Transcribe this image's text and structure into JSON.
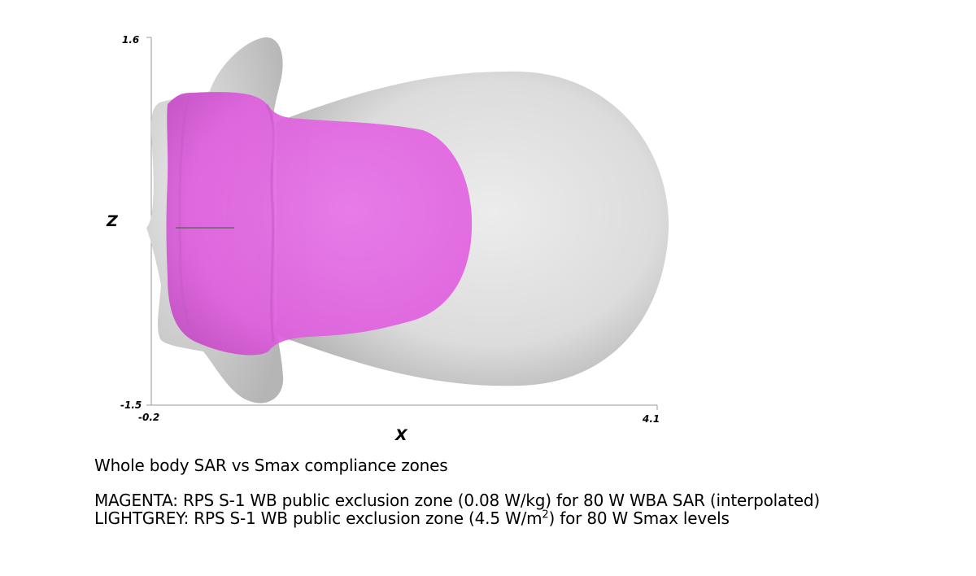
{
  "figure": {
    "axes": {
      "x_label": "X",
      "z_label": "Z",
      "x_min_label": "-0.2",
      "x_max_label": "4.1",
      "z_min_label": "-1.5",
      "z_max_label": "1.6"
    },
    "colors": {
      "smax_zone": "#d9d9d9",
      "sar_zone": "#e05be0",
      "axis": "#999999"
    },
    "captions": {
      "title": "Whole body SAR vs Smax compliance zones",
      "magenta": "MAGENTA: RPS S-1 WB public exclusion zone (0.08 W/kg) for 80 W WBA SAR (interpolated)",
      "lightgrey_prefix": "LIGHTGREY: RPS S-1 WB public exclusion zone (4.5 W/m",
      "lightgrey_superscript": "2",
      "lightgrey_suffix": ") for 80 W Smax levels"
    }
  }
}
